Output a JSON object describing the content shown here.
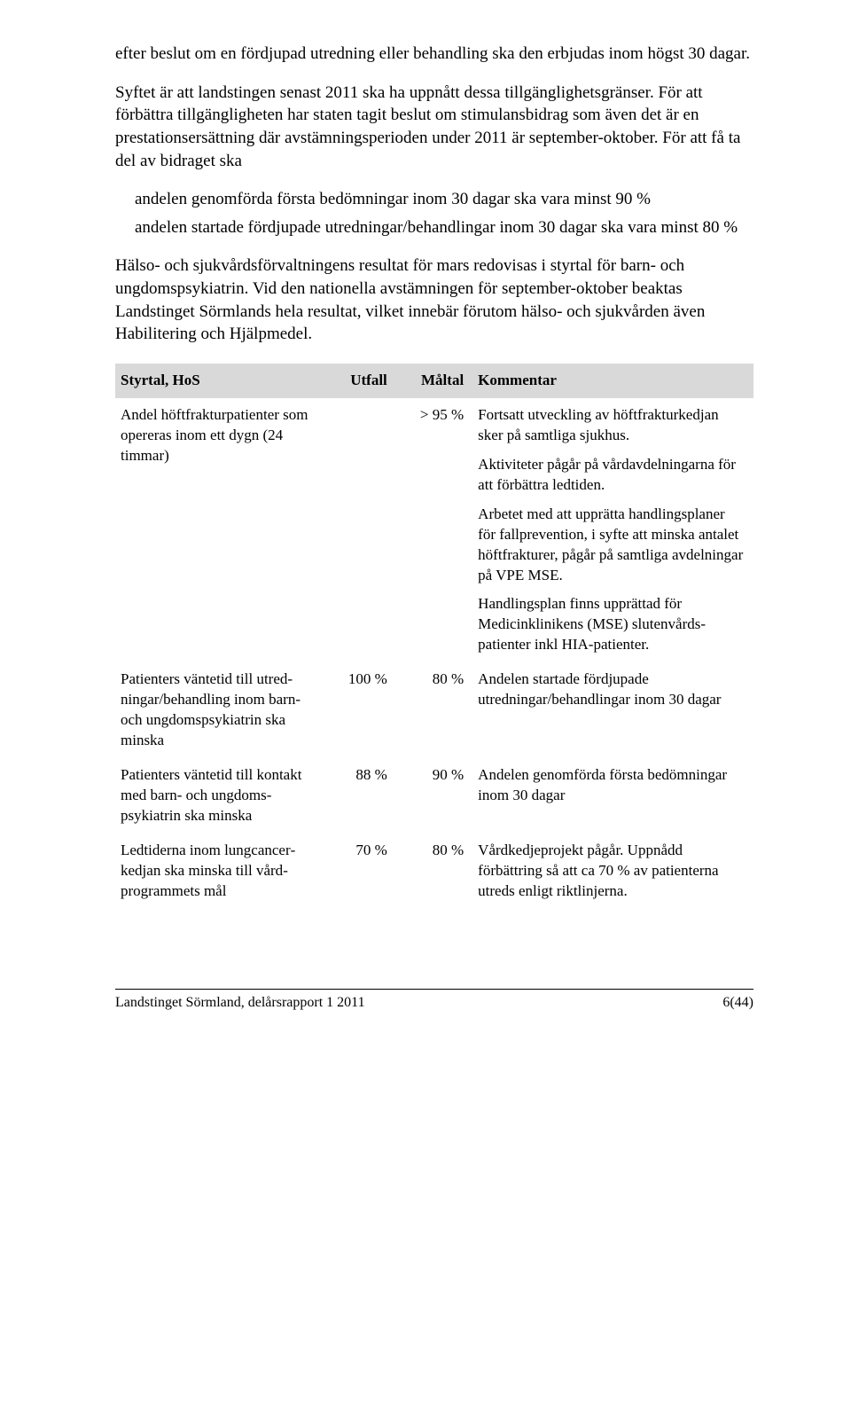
{
  "body": {
    "p1": "efter beslut om en fördjupad utredning eller behandling ska den erbjudas inom högst 30 dagar.",
    "p2": "Syftet är att landstingen senast 2011 ska ha uppnått dessa tillgänglighets­gränser. För att förbättra tillgängligheten har staten tagit beslut om stimu­lansbidrag som även det är en prestationsersättning där avstämnings­perioden under 2011 är september-oktober. För att få ta del av bidraget ska",
    "bullet1": "andelen genomförda första bedömningar inom 30 dagar ska vara minst 90 %",
    "bullet2": "andelen startade fördjupade utredningar/behandlingar inom 30 dagar ska vara minst 80 %",
    "p3": "Hälso- och sjukvårdsförvaltningens resultat för mars redovisas i styrtal för barn- och ungdomspsykiatrin. Vid den nationella avstämningen för sep­tember-oktober beaktas Landstinget Sörmlands hela resultat, vilket innebär förutom hälso- och sjukvården även Habilitering och Hjälpmedel."
  },
  "table": {
    "headers": {
      "styrtal": "Styrtal, HoS",
      "utfall": "Utfall",
      "maltal": "Måltal",
      "kommentar": "Kommentar"
    },
    "rows": [
      {
        "styrtal": "Andel höftfrakturpatienter som opereras inom ett dygn (24 timmar)",
        "utfall": "",
        "maltal": "> 95 %",
        "kommentar": [
          "Fortsatt utveckling av höftfrakturkedjan sker på samtliga sjukhus.",
          "Aktiviteter pågår på vårdavdelningarna för att förbättra ledtiden.",
          "Arbetet med att upprätta handlingsplaner för fallprevention, i syfte att minska antalet höftfrakturer, pågår på samtliga avdelningar på VPE MSE.",
          "Handlingsplan finns upprättad för Medicinklinikens (MSE) slutenvårds­patienter inkl HIA-patienter."
        ]
      },
      {
        "styrtal": "Patienters väntetid till utred­ningar/behandling inom barn- och ungdomspsykiatrin ska minska",
        "utfall": "100 %",
        "maltal": "80 %",
        "kommentar": [
          "Andelen startade fördjupade utredningar/behandlingar inom 30 dagar"
        ]
      },
      {
        "styrtal": "Patienters väntetid till kontakt med barn- och ungdoms­psykiatrin ska minska",
        "utfall": "88 %",
        "maltal": "90 %",
        "kommentar": [
          "Andelen genomförda första bedömning­ar inom 30 dagar"
        ]
      },
      {
        "styrtal": "Ledtiderna inom lungcancer­kedjan ska minska till vård­programmets mål",
        "utfall": "70 %",
        "maltal": "80 %",
        "kommentar": [
          "Vårdkedjeprojekt pågår. Uppnådd förbättring så att ca 70 % av patienterna utreds enligt riktlinjerna."
        ]
      }
    ]
  },
  "footer": {
    "left": "Landstinget Sörmland, delårsrapport 1 2011",
    "right": "6(44)"
  }
}
